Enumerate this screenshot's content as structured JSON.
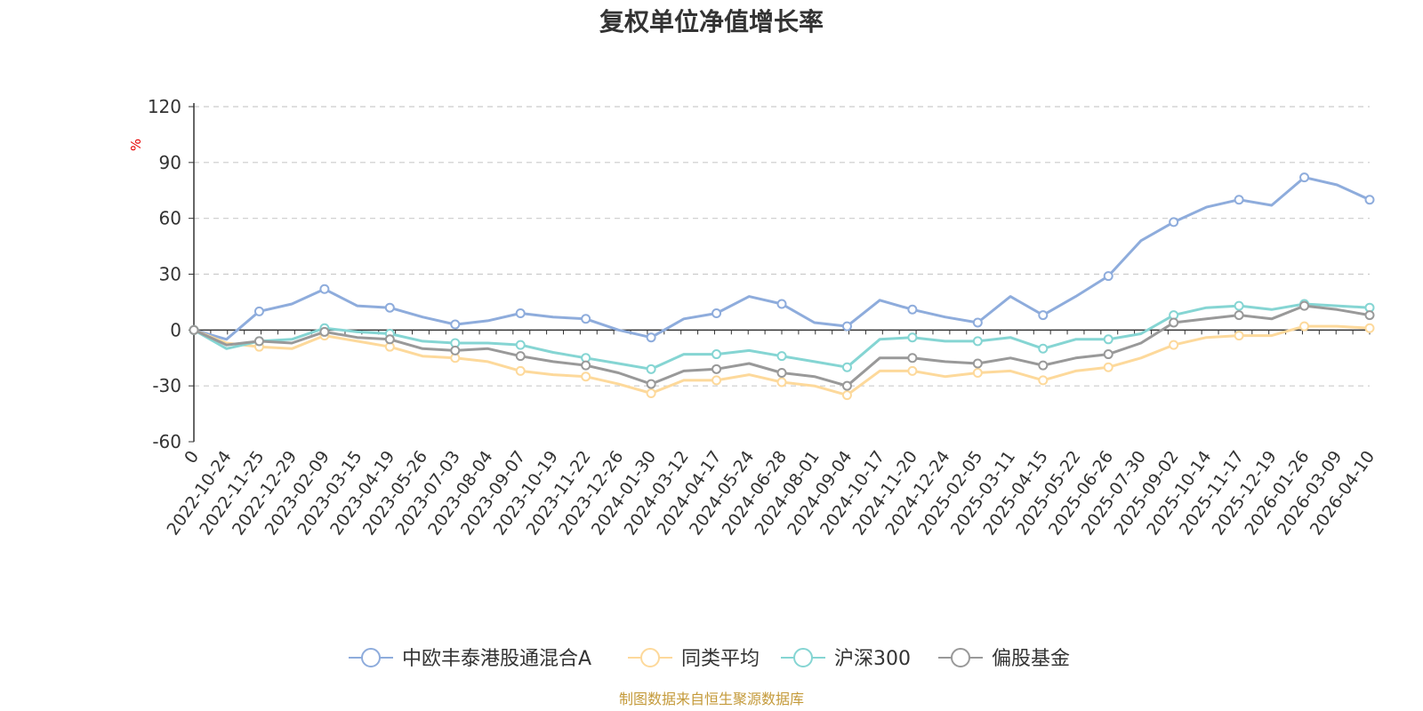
{
  "chart_data": {
    "type": "line",
    "title": "复权单位净值增长率",
    "ylabel": "%",
    "ylim": [
      -60,
      120
    ],
    "yticks": [
      -60,
      -30,
      0,
      30,
      60,
      90,
      120
    ],
    "categories": [
      "0",
      "2022-10-24",
      "2022-11-25",
      "2022-12-29",
      "2023-02-09",
      "2023-03-15",
      "2023-04-19",
      "2023-05-26",
      "2023-07-03",
      "2023-08-04",
      "2023-09-07",
      "2023-10-19",
      "2023-11-22",
      "2023-12-26",
      "2024-01-30",
      "2024-03-12",
      "2024-04-17",
      "2024-05-24",
      "2024-06-28",
      "2024-08-01",
      "2024-09-04",
      "2024-10-17",
      "2024-11-20",
      "2024-12-24",
      "2025-02-05",
      "2025-03-11",
      "2025-04-15",
      "2025-05-22",
      "2025-06-26",
      "2025-07-30",
      "2025-09-02",
      "2025-10-14",
      "2025-11-17",
      "2025-12-19",
      "2026-01-26",
      "2026-03-09",
      "2026-04-10"
    ],
    "grid": true,
    "legend_position": "bottom",
    "series": [
      {
        "name": "中欧丰泰港股通混合A",
        "color": "#8eacdc",
        "values": [
          0,
          -5,
          10,
          14,
          22,
          13,
          12,
          7,
          3,
          5,
          9,
          7,
          6,
          0,
          -4,
          6,
          9,
          18,
          14,
          4,
          2,
          16,
          11,
          7,
          4,
          18,
          8,
          18,
          29,
          48,
          58,
          66,
          70,
          67,
          82,
          78,
          70
        ]
      },
      {
        "name": "同类平均",
        "color": "#fdd99b",
        "values": [
          0,
          -7,
          -9,
          -10,
          -3,
          -6,
          -9,
          -14,
          -15,
          -17,
          -22,
          -24,
          -25,
          -29,
          -34,
          -27,
          -27,
          -24,
          -28,
          -30,
          -35,
          -22,
          -22,
          -25,
          -23,
          -22,
          -27,
          -22,
          -20,
          -15,
          -8,
          -4,
          -3,
          -3,
          2,
          2,
          1
        ]
      },
      {
        "name": "沪深300",
        "color": "#85d5d3",
        "values": [
          0,
          -10,
          -6,
          -5,
          1,
          -1,
          -2,
          -6,
          -7,
          -7,
          -8,
          -12,
          -15,
          -18,
          -21,
          -13,
          -13,
          -11,
          -14,
          -17,
          -20,
          -5,
          -4,
          -6,
          -6,
          -4,
          -10,
          -5,
          -5,
          -2,
          8,
          12,
          13,
          11,
          14,
          13,
          12
        ]
      },
      {
        "name": "偏股基金",
        "color": "#999999",
        "values": [
          0,
          -8,
          -6,
          -7,
          -1,
          -4,
          -5,
          -10,
          -11,
          -10,
          -14,
          -17,
          -19,
          -23,
          -29,
          -22,
          -21,
          -18,
          -23,
          -25,
          -30,
          -15,
          -15,
          -17,
          -18,
          -15,
          -19,
          -15,
          -13,
          -7,
          4,
          6,
          8,
          6,
          13,
          11,
          8
        ]
      }
    ]
  },
  "footer": {
    "text": "制图数据来自恒生聚源数据库",
    "color": "#c49a3a"
  },
  "unit_color": "#e60000"
}
